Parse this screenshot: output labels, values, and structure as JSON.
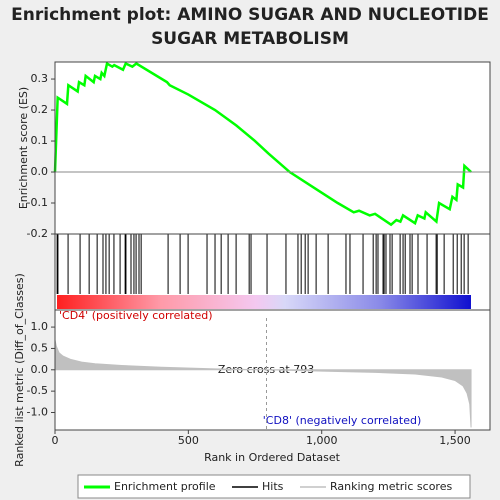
{
  "chart_data": {
    "type": "line",
    "title": "Enrichment plot: AMINO SUGAR AND NUCLEOTIDE",
    "title_line2": "SUGAR METABOLISM",
    "xlabel": "Rank in Ordered Dataset",
    "ylabel": "Enrichment score (ES)",
    "xlim": [
      0,
      1631
    ],
    "xticks": [
      0,
      500,
      {
        "value": 1000,
        "label": "1,000"
      },
      {
        "value": 1500,
        "label": "1,500"
      }
    ],
    "ylim": [
      -0.2,
      0.355
    ],
    "yticks": [
      -0.2,
      -0.1,
      {
        "value": 0,
        "label": "0.0"
      },
      0.1,
      0.2,
      0.3
    ],
    "series": [
      {
        "name": "Enrichment profile",
        "color": "#00ff00",
        "x": [
          0,
          5,
          10,
          45,
          50,
          85,
          90,
          110,
          115,
          145,
          150,
          170,
          175,
          185,
          195,
          215,
          222,
          255,
          265,
          290,
          305,
          420,
          430,
          500,
          600,
          680,
          750,
          800,
          880,
          970,
          1060,
          1120,
          1140,
          1180,
          1200,
          1260,
          1280,
          1295,
          1305,
          1350,
          1360,
          1385,
          1390,
          1430,
          1440,
          1480,
          1490,
          1505,
          1510,
          1530,
          1535,
          1560
        ],
        "values": [
          0,
          0.12,
          0.24,
          0.22,
          0.28,
          0.26,
          0.29,
          0.28,
          0.31,
          0.29,
          0.31,
          0.3,
          0.32,
          0.31,
          0.35,
          0.34,
          0.345,
          0.33,
          0.35,
          0.34,
          0.35,
          0.29,
          0.28,
          0.25,
          0.2,
          0.15,
          0.1,
          0.06,
          0,
          -0.05,
          -0.1,
          -0.13,
          -0.125,
          -0.14,
          -0.135,
          -0.17,
          -0.155,
          -0.16,
          -0.14,
          -0.165,
          -0.14,
          -0.15,
          -0.13,
          -0.16,
          -0.1,
          -0.12,
          -0.08,
          -0.09,
          -0.04,
          -0.05,
          0.02,
          0
        ]
      }
    ],
    "hits": {
      "name": "Hits",
      "color": "#000000",
      "x": [
        8,
        11,
        49,
        94,
        128,
        158,
        180,
        191,
        203,
        221,
        244,
        263,
        266,
        285,
        296,
        304,
        315,
        323,
        424,
        469,
        499,
        570,
        600,
        623,
        649,
        679,
        728,
        735,
        795,
        866,
        911,
        923,
        938,
        949,
        979,
        1024,
        1091,
        1106,
        1155,
        1193,
        1204,
        1211,
        1230,
        1234,
        1241,
        1256,
        1264,
        1294,
        1305,
        1313,
        1331,
        1339,
        1361,
        1395,
        1429,
        1433,
        1459,
        1493,
        1508,
        1523,
        1534,
        1549
      ]
    },
    "ranking": {
      "name": "Ranking metric scores",
      "color": "#c0c0c0",
      "ylabel": "Ranked list metric (Diff_of_Classes)",
      "ylim": [
        -1.41,
        1.4
      ],
      "yticks": [
        {
          "value": -1,
          "label": "-1.0"
        },
        -0.5,
        {
          "value": 0,
          "label": "0.0"
        },
        0.5,
        {
          "value": 1,
          "label": "1.0"
        }
      ],
      "x": [
        0,
        5,
        15,
        30,
        60,
        100,
        150,
        250,
        400,
        600,
        793,
        1000,
        1200,
        1350,
        1450,
        1500,
        1530,
        1545,
        1555,
        1560
      ],
      "values": [
        0.7,
        0.55,
        0.4,
        0.32,
        0.24,
        0.18,
        0.14,
        0.1,
        0.06,
        0.02,
        0,
        -0.03,
        -0.06,
        -0.1,
        -0.17,
        -0.25,
        -0.38,
        -0.55,
        -0.8,
        -1.35
      ]
    },
    "zero_cross": 793,
    "annotations": [
      "'CD4' (positively correlated)",
      "Zero cross at 793",
      "'CD8' (negatively correlated)"
    ]
  }
}
